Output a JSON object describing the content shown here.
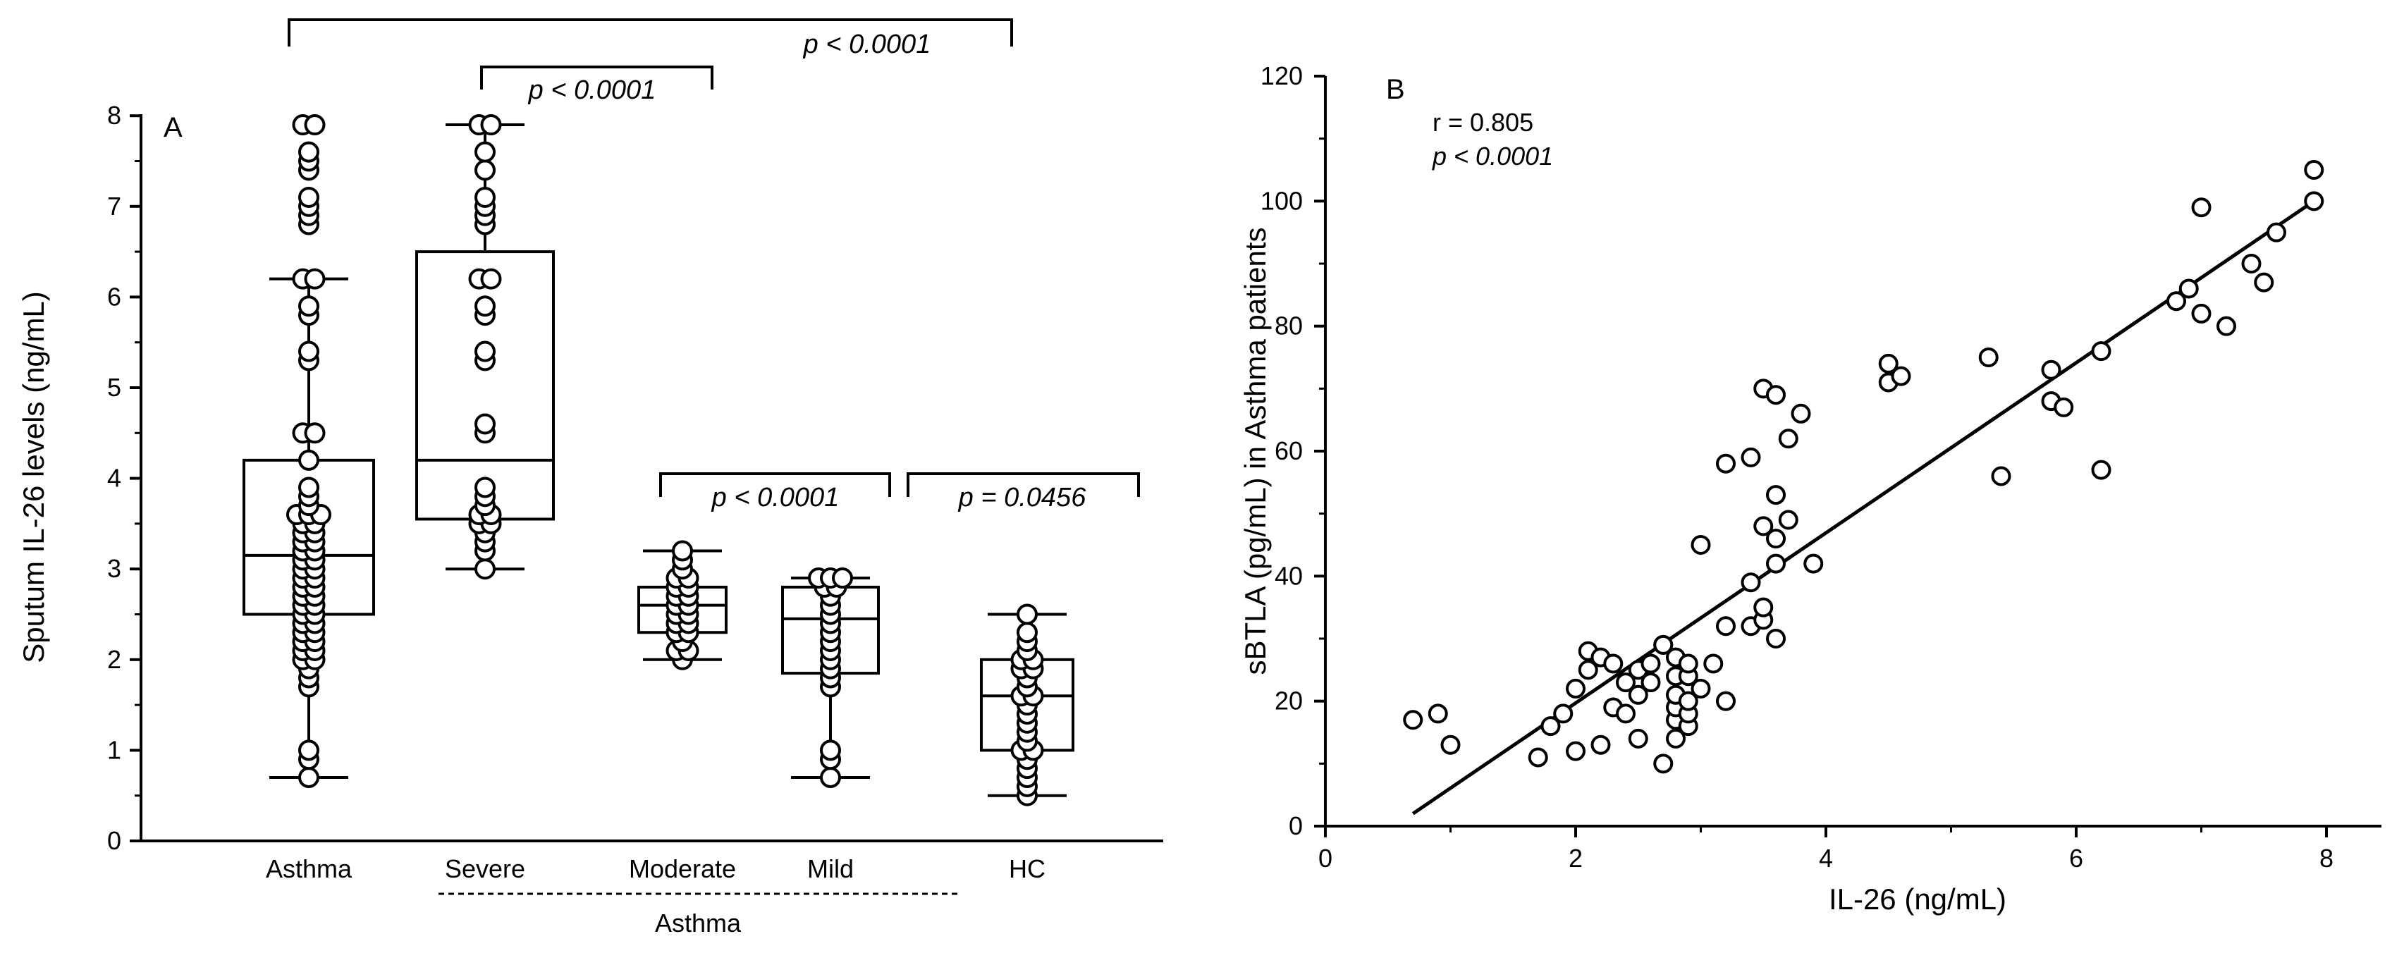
{
  "chart_data": [
    {
      "type": "box",
      "panel_label": "A",
      "ylabel": "Sputum IL-26 levels (ng/mL)",
      "ylim": [
        0,
        8
      ],
      "yticks": [
        0,
        1,
        2,
        3,
        4,
        5,
        6,
        7,
        8
      ],
      "categories": [
        "Asthma",
        "Severe",
        "Moderate",
        "Mild",
        "HC"
      ],
      "group_label": "Asthma",
      "boxes": [
        {
          "name": "Asthma",
          "min": 0.7,
          "q1": 2.5,
          "median": 3.15,
          "q3": 4.2,
          "max": 6.2,
          "points": [
            0.7,
            0.9,
            1.0,
            1.7,
            1.8,
            1.9,
            2.0,
            2.0,
            2.1,
            2.1,
            2.2,
            2.2,
            2.3,
            2.3,
            2.4,
            2.4,
            2.5,
            2.5,
            2.6,
            2.6,
            2.7,
            2.7,
            2.8,
            2.8,
            2.9,
            2.9,
            3.0,
            3.0,
            3.1,
            3.1,
            3.2,
            3.2,
            3.3,
            3.3,
            3.4,
            3.4,
            3.5,
            3.5,
            3.6,
            3.6,
            3.6,
            3.7,
            3.8,
            3.9,
            4.2,
            4.5,
            4.5,
            5.3,
            5.4,
            5.8,
            5.9,
            6.2,
            6.2,
            6.8,
            6.9,
            7.0,
            7.1,
            7.4,
            7.5,
            7.6,
            7.9,
            7.9
          ]
        },
        {
          "name": "Severe",
          "min": 3.0,
          "q1": 3.55,
          "median": 4.2,
          "q3": 6.5,
          "max": 7.9,
          "points": [
            3.0,
            3.2,
            3.3,
            3.4,
            3.5,
            3.5,
            3.6,
            3.6,
            3.7,
            3.8,
            3.9,
            4.5,
            4.6,
            5.3,
            5.4,
            5.8,
            5.9,
            6.2,
            6.2,
            6.8,
            6.9,
            7.0,
            7.1,
            7.4,
            7.6,
            7.9,
            7.9
          ]
        },
        {
          "name": "Moderate",
          "min": 2.0,
          "q1": 2.3,
          "median": 2.6,
          "q3": 2.8,
          "max": 3.2,
          "points": [
            2.0,
            2.1,
            2.1,
            2.2,
            2.3,
            2.3,
            2.4,
            2.4,
            2.5,
            2.5,
            2.6,
            2.6,
            2.7,
            2.7,
            2.8,
            2.8,
            2.9,
            2.9,
            3.0,
            3.1,
            3.2
          ]
        },
        {
          "name": "Mild",
          "min": 0.7,
          "q1": 1.85,
          "median": 2.45,
          "q3": 2.8,
          "max": 2.9,
          "points": [
            0.7,
            0.9,
            1.0,
            1.7,
            1.8,
            1.9,
            2.0,
            2.1,
            2.2,
            2.3,
            2.4,
            2.5,
            2.6,
            2.7,
            2.8,
            2.8,
            2.9,
            2.9,
            2.9
          ]
        },
        {
          "name": "HC",
          "min": 0.5,
          "q1": 1.0,
          "median": 1.6,
          "q3": 2.0,
          "max": 2.5,
          "points": [
            0.5,
            0.6,
            0.7,
            0.8,
            0.9,
            1.0,
            1.0,
            1.1,
            1.2,
            1.3,
            1.4,
            1.5,
            1.6,
            1.6,
            1.7,
            1.8,
            1.9,
            1.9,
            2.0,
            2.0,
            2.1,
            2.2,
            2.3,
            2.5
          ]
        }
      ],
      "comparisons": [
        {
          "from": "Asthma",
          "to": "HC",
          "label": "p < 0.0001"
        },
        {
          "from": "Severe",
          "to": "Moderate",
          "label": "p < 0.0001"
        },
        {
          "from": "Moderate",
          "to": "Mild",
          "label": "p < 0.0001"
        },
        {
          "from": "Mild",
          "to": "HC",
          "label": "p = 0.0456"
        }
      ]
    },
    {
      "type": "scatter",
      "panel_label": "B",
      "xlabel": "IL-26 (ng/mL)",
      "ylabel": "sBTLA (pg/mL) in Asthma patients",
      "xlim": [
        0,
        8
      ],
      "ylim": [
        0,
        120
      ],
      "xticks": [
        0,
        2,
        4,
        6,
        8
      ],
      "yticks": [
        0,
        20,
        40,
        60,
        80,
        100,
        120
      ],
      "annotation_r": "r = 0.805",
      "annotation_p": "p < 0.0001",
      "fit_line": {
        "x": [
          0.7,
          7.9
        ],
        "y": [
          2,
          100
        ]
      },
      "points": [
        [
          0.7,
          17
        ],
        [
          0.9,
          18
        ],
        [
          1.0,
          13
        ],
        [
          1.7,
          11
        ],
        [
          1.8,
          16
        ],
        [
          1.9,
          18
        ],
        [
          2.0,
          12
        ],
        [
          2.0,
          22
        ],
        [
          2.1,
          25
        ],
        [
          2.1,
          28
        ],
        [
          2.2,
          13
        ],
        [
          2.2,
          27
        ],
        [
          2.3,
          19
        ],
        [
          2.3,
          26
        ],
        [
          2.4,
          18
        ],
        [
          2.4,
          23
        ],
        [
          2.5,
          14
        ],
        [
          2.5,
          21
        ],
        [
          2.5,
          25
        ],
        [
          2.6,
          23
        ],
        [
          2.6,
          26
        ],
        [
          2.7,
          10
        ],
        [
          2.7,
          29
        ],
        [
          2.7,
          29
        ],
        [
          2.8,
          14
        ],
        [
          2.8,
          17
        ],
        [
          2.8,
          19
        ],
        [
          2.8,
          21
        ],
        [
          2.8,
          24
        ],
        [
          2.8,
          27
        ],
        [
          2.9,
          16
        ],
        [
          2.9,
          18
        ],
        [
          2.9,
          20
        ],
        [
          2.9,
          24
        ],
        [
          2.9,
          26
        ],
        [
          3.0,
          22
        ],
        [
          3.0,
          45
        ],
        [
          3.1,
          26
        ],
        [
          3.2,
          20
        ],
        [
          3.2,
          32
        ],
        [
          3.2,
          58
        ],
        [
          3.4,
          32
        ],
        [
          3.4,
          39
        ],
        [
          3.4,
          59
        ],
        [
          3.5,
          33
        ],
        [
          3.5,
          35
        ],
        [
          3.5,
          48
        ],
        [
          3.5,
          70
        ],
        [
          3.6,
          30
        ],
        [
          3.6,
          42
        ],
        [
          3.6,
          46
        ],
        [
          3.6,
          53
        ],
        [
          3.6,
          69
        ],
        [
          3.7,
          49
        ],
        [
          3.7,
          62
        ],
        [
          3.8,
          66
        ],
        [
          3.9,
          42
        ],
        [
          4.5,
          71
        ],
        [
          4.5,
          74
        ],
        [
          4.6,
          72
        ],
        [
          5.3,
          75
        ],
        [
          5.4,
          56
        ],
        [
          5.8,
          68
        ],
        [
          5.8,
          73
        ],
        [
          5.9,
          67
        ],
        [
          6.2,
          57
        ],
        [
          6.2,
          76
        ],
        [
          6.8,
          84
        ],
        [
          6.9,
          86
        ],
        [
          7.0,
          82
        ],
        [
          7.0,
          99
        ],
        [
          7.2,
          80
        ],
        [
          7.4,
          90
        ],
        [
          7.5,
          87
        ],
        [
          7.6,
          95
        ],
        [
          7.9,
          100
        ],
        [
          7.9,
          105
        ]
      ]
    }
  ]
}
